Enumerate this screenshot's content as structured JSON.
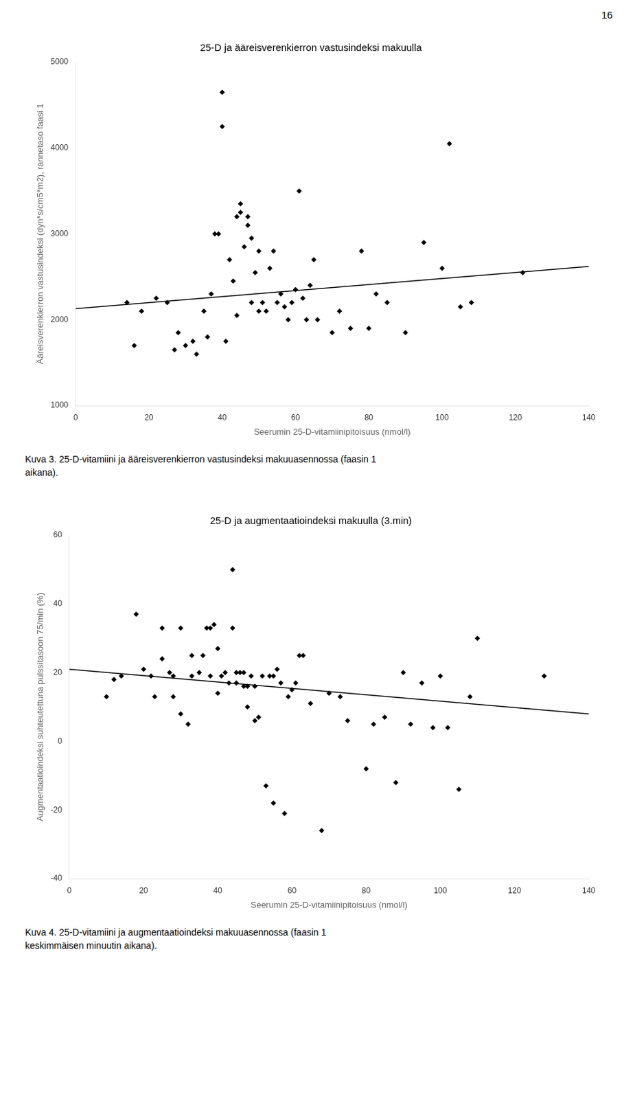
{
  "page_number": "16",
  "chart_data": [
    {
      "type": "scatter",
      "title": "25-D ja ääreisverenkierron vastusindeksi makuulla",
      "xlabel": "Seerumin 25-D-vitamiinipitoisuus (nmol/l)",
      "ylabel": "Ääreis­verenkierron vastusindeksi (dyn*s/cm5*m2), rannetaso faasi 1",
      "xlim": [
        0,
        140
      ],
      "ylim": [
        1000,
        5000
      ],
      "xticks": [
        0,
        20,
        40,
        60,
        80,
        100,
        120,
        140
      ],
      "yticks": [
        1000,
        2000,
        3000,
        4000,
        5000
      ],
      "grid": false,
      "legend": false,
      "series": [
        {
          "type": "scatter",
          "marker": "diamond",
          "color": "#000000",
          "x": [
            14,
            16,
            18,
            22,
            25,
            27,
            28,
            30,
            32,
            33,
            35,
            36,
            37,
            38,
            39,
            40,
            40,
            41,
            42,
            43,
            44,
            44,
            45,
            45,
            46,
            47,
            47,
            48,
            48,
            49,
            50,
            50,
            51,
            52,
            53,
            54,
            55,
            56,
            57,
            58,
            59,
            60,
            61,
            62,
            63,
            64,
            65,
            66,
            70,
            72,
            75,
            78,
            80,
            82,
            85,
            90,
            95,
            100,
            102,
            105,
            108,
            122
          ],
          "values": [
            2200,
            1700,
            2100,
            2250,
            2200,
            1650,
            1850,
            1700,
            1750,
            1600,
            2100,
            1800,
            2300,
            3000,
            3000,
            4650,
            4250,
            1750,
            2700,
            2450,
            3200,
            2050,
            3350,
            3250,
            2850,
            3200,
            3100,
            2950,
            2200,
            2550,
            2800,
            2100,
            2200,
            2100,
            2600,
            2800,
            2200,
            2300,
            2150,
            2000,
            2200,
            2350,
            3500,
            2250,
            2000,
            2400,
            2700,
            2000,
            1850,
            2100,
            1900,
            2800,
            1900,
            2300,
            2200,
            1850,
            2900,
            2600,
            4050,
            2150,
            2200,
            2550
          ]
        },
        {
          "type": "line",
          "line_style": "solid",
          "color": "#000000",
          "x": [
            0,
            140
          ],
          "values": [
            2130,
            2620
          ]
        }
      ],
      "annotations": [
        "Kuva 3. 25-D-vitamiini ja ääreisverenkierron vastusindeksi makuuasennossa (faasin 1",
        "aikana)."
      ]
    },
    {
      "type": "scatter",
      "title": "25-D ja augmentaatioindeksi makuulla (3.min)",
      "xlabel": "Seerumin 25-D-vitamiinipitoisuus (nmol/l)",
      "ylabel": "Augmentaatioindeksi suhteutettuna pulssitasoon 75/min (%)",
      "xlim": [
        0,
        140
      ],
      "ylim": [
        -40,
        60
      ],
      "xticks": [
        0,
        20,
        40,
        60,
        80,
        100,
        120,
        140
      ],
      "yticks": [
        -40,
        -20,
        0,
        20,
        40,
        60
      ],
      "grid": false,
      "legend": false,
      "series": [
        {
          "type": "scatter",
          "marker": "diamond",
          "color": "#000000",
          "x": [
            10,
            12,
            14,
            18,
            20,
            22,
            23,
            25,
            25,
            27,
            28,
            28,
            30,
            30,
            32,
            33,
            33,
            35,
            36,
            37,
            38,
            38,
            39,
            40,
            40,
            41,
            42,
            43,
            44,
            44,
            45,
            45,
            46,
            47,
            47,
            48,
            48,
            49,
            50,
            50,
            51,
            52,
            53,
            54,
            55,
            55,
            56,
            57,
            58,
            59,
            60,
            61,
            62,
            63,
            65,
            68,
            70,
            73,
            75,
            80,
            82,
            85,
            88,
            90,
            92,
            95,
            98,
            100,
            102,
            105,
            108,
            110,
            128
          ],
          "values": [
            13,
            18,
            19,
            37,
            21,
            19,
            13,
            24,
            33,
            20,
            13,
            19,
            33,
            8,
            5,
            25,
            19,
            20,
            25,
            33,
            33,
            19,
            34,
            14,
            27,
            19,
            20,
            17,
            50,
            33,
            20,
            17,
            20,
            16,
            20,
            16,
            10,
            19,
            16,
            6,
            7,
            19,
            -13,
            19,
            19,
            -18,
            21,
            17,
            -21,
            13,
            15,
            17,
            25,
            25,
            11,
            -26,
            14,
            13,
            6,
            -8,
            5,
            7,
            -12,
            20,
            5,
            17,
            4,
            19,
            4,
            -14,
            13,
            30,
            19
          ]
        },
        {
          "type": "line",
          "line_style": "solid",
          "color": "#000000",
          "x": [
            0,
            140
          ],
          "values": [
            21,
            8
          ]
        }
      ],
      "annotations": [
        "Kuva 4. 25-D-vitamiini ja augmentaatioindeksi makuuasennossa (faasin 1",
        "keskimmäisen minuutin aikana)."
      ]
    }
  ]
}
